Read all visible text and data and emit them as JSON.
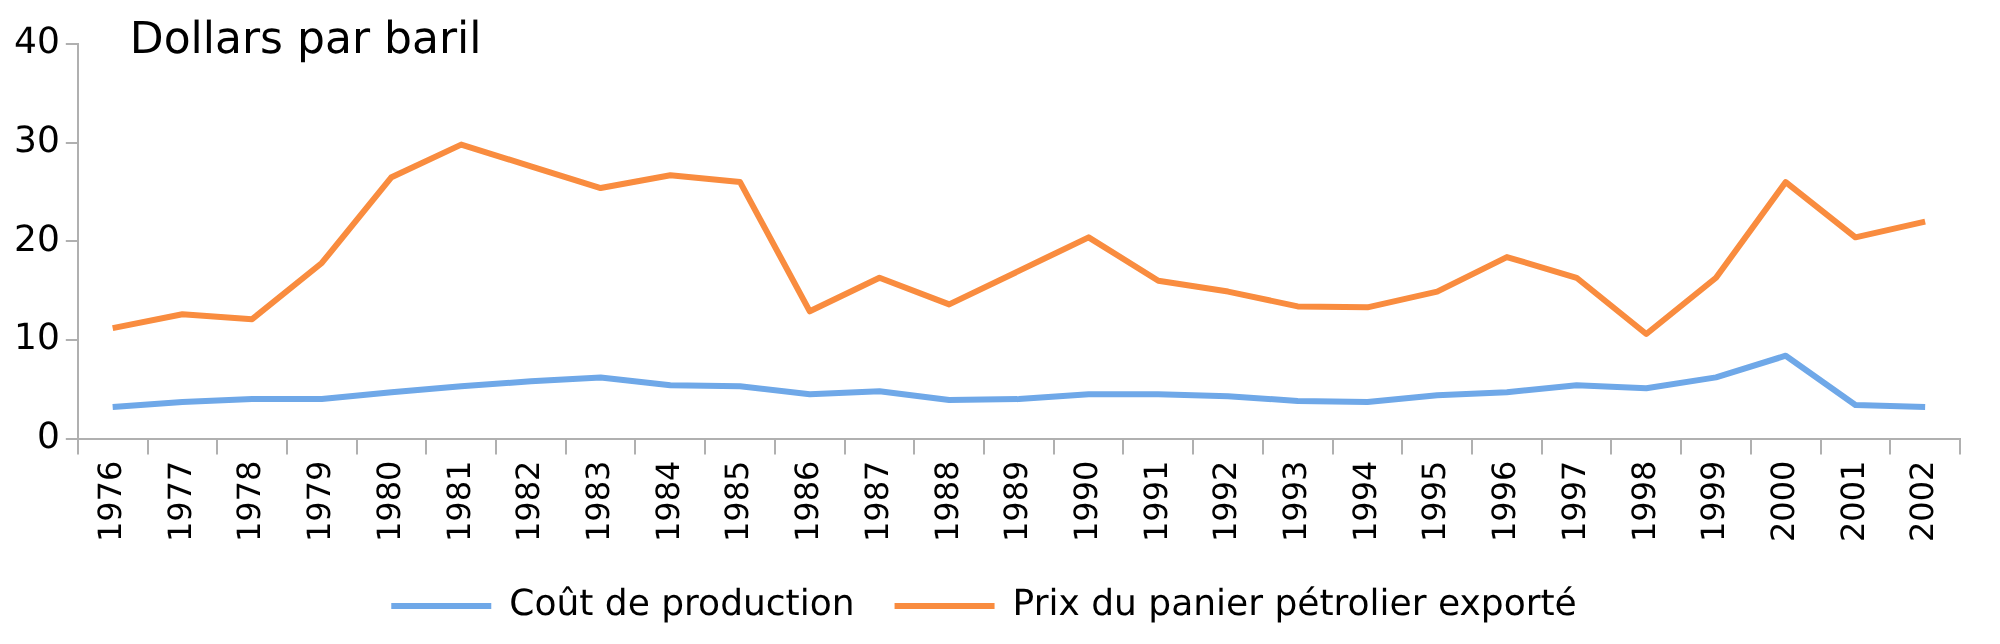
{
  "chart_data": {
    "type": "line",
    "title": "Dollars par baril",
    "categories": [
      "1976",
      "1977",
      "1978",
      "1979",
      "1980",
      "1981",
      "1982",
      "1983",
      "1984",
      "1985",
      "1986",
      "1987",
      "1988",
      "1989",
      "1990",
      "1991",
      "1992",
      "1993",
      "1994",
      "1995",
      "1996",
      "1997",
      "1998",
      "1999",
      "2000",
      "2001",
      "2002"
    ],
    "series": [
      {
        "name": "Coût de production",
        "color": "#6fa8e8",
        "values": [
          3.2,
          3.7,
          4,
          4,
          4.7,
          5.3,
          5.8,
          6.2,
          5.4,
          5.3,
          4.5,
          4.8,
          3.9,
          4,
          4.5,
          4.5,
          4.3,
          3.8,
          3.7,
          4.4,
          4.7,
          5.4,
          5.1,
          6.2,
          8.4,
          3.4,
          3.2
        ]
      },
      {
        "name": "Prix du panier pétrolier exporté",
        "color": "#f98c3f",
        "values": [
          11.2,
          12.6,
          12.1,
          17.8,
          26.5,
          29.8,
          27.6,
          25.4,
          26.7,
          26,
          12.9,
          16.3,
          13.6,
          17,
          20.4,
          16,
          14.9,
          13.4,
          13.3,
          14.9,
          18.4,
          16.3,
          10.6,
          16.3,
          26,
          20.4,
          22
        ]
      }
    ],
    "ylim": [
      0,
      40
    ],
    "yticks": [
      0,
      10,
      20,
      30,
      40
    ],
    "grid": false,
    "legend": "bottom",
    "marker": "none",
    "line_style": "solid"
  }
}
